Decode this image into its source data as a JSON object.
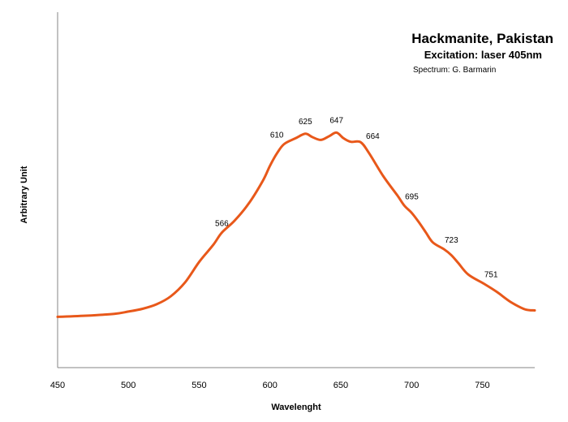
{
  "chart_data": {
    "type": "line",
    "title": "Hackmanite, Pakistan",
    "subtitle": "Excitation: laser 405nm",
    "credit": "Spectrum: G. Barmarin",
    "xlabel": "Wavelenght",
    "ylabel": "Arbitrary Unit",
    "xlim": [
      450,
      787
    ],
    "ylim": [
      0,
      100
    ],
    "x_ticks": [
      450,
      500,
      550,
      600,
      650,
      700,
      750
    ],
    "grid": false,
    "legend": "none",
    "line_color": "#E8581A",
    "series": [
      {
        "x": [
          450,
          470,
          490,
          500,
          510,
          520,
          530,
          540,
          550,
          560,
          566,
          575,
          585,
          595,
          600,
          605,
          610,
          618,
          625,
          630,
          636,
          642,
          647,
          652,
          657,
          664,
          670,
          680,
          690,
          695,
          700,
          705,
          710,
          715,
          723,
          728,
          733,
          740,
          751,
          760,
          770,
          780,
          787
        ],
        "y": [
          10.5,
          11.0,
          11.8,
          12.8,
          14.0,
          16.0,
          19.5,
          25.5,
          34.5,
          42.0,
          47.3,
          52.5,
          60.0,
          70.0,
          76.5,
          82.0,
          86.0,
          88.5,
          90.5,
          89.0,
          87.8,
          89.5,
          91.0,
          88.5,
          87.0,
          86.8,
          82.0,
          72.0,
          63.5,
          59.0,
          56.0,
          52.0,
          47.5,
          43.0,
          40.0,
          37.5,
          34.0,
          29.0,
          25.0,
          21.5,
          17.0,
          13.8,
          13.3
        ]
      }
    ],
    "annotations": [
      {
        "text": "566",
        "x": 566,
        "y": 47.3
      },
      {
        "text": "610",
        "x": 610,
        "y": 86.0
      },
      {
        "text": "625",
        "x": 625,
        "y": 90.5
      },
      {
        "text": "647",
        "x": 647,
        "y": 91.0
      },
      {
        "text": "664",
        "x": 664,
        "y": 86.8
      },
      {
        "text": "695",
        "x": 695,
        "y": 59.0
      },
      {
        "text": "723",
        "x": 723,
        "y": 40.0
      },
      {
        "text": "751",
        "x": 751,
        "y": 25.0
      }
    ]
  }
}
